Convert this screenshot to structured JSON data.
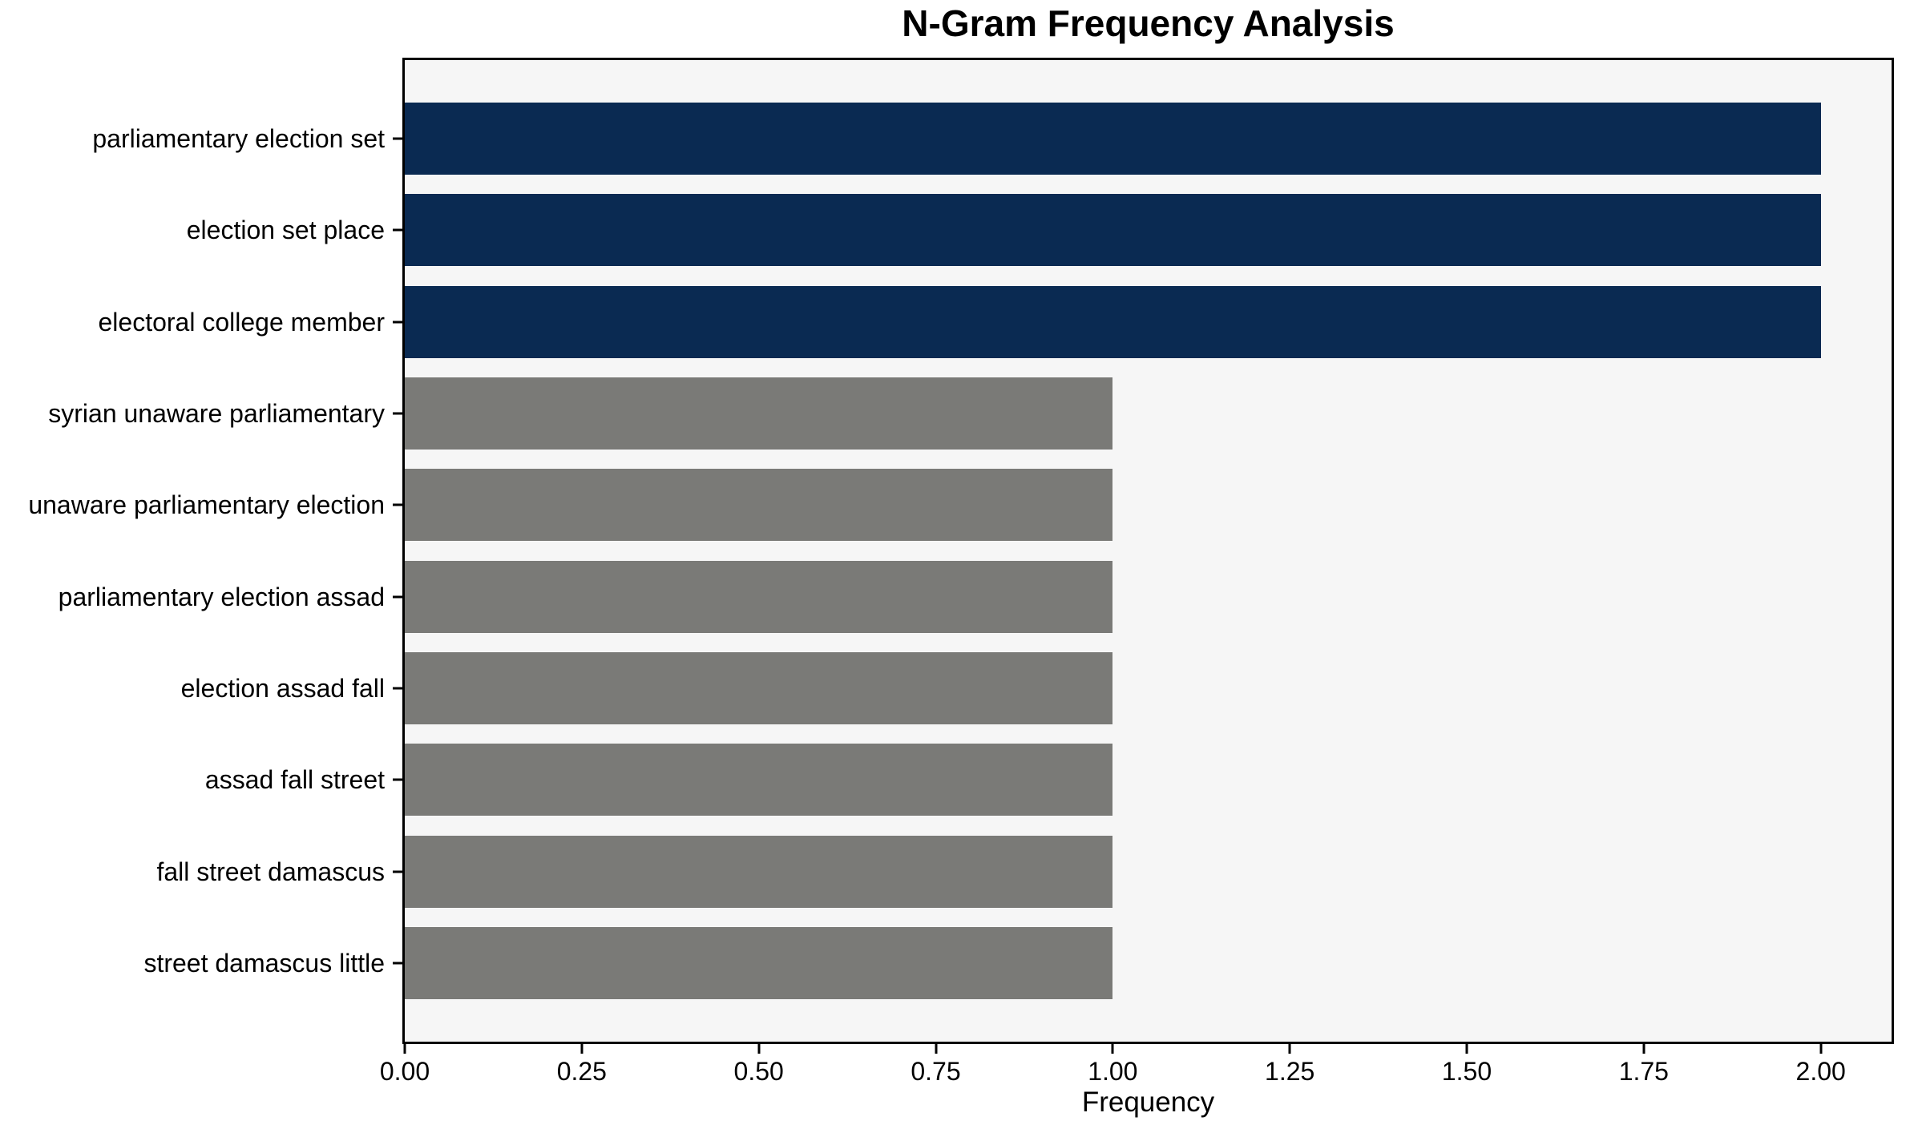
{
  "chart_data": {
    "type": "bar",
    "orientation": "horizontal",
    "title": "N-Gram Frequency Analysis",
    "xlabel": "Frequency",
    "ylabel": "",
    "categories": [
      "parliamentary election set",
      "election set place",
      "electoral college member",
      "syrian unaware parliamentary",
      "unaware parliamentary election",
      "parliamentary election assad",
      "election assad fall",
      "assad fall street",
      "fall street damascus",
      "street damascus little"
    ],
    "values": [
      2,
      2,
      2,
      1,
      1,
      1,
      1,
      1,
      1,
      1
    ],
    "bar_colors": [
      "#0a2a52",
      "#0a2a52",
      "#0a2a52",
      "#7a7a77",
      "#7a7a77",
      "#7a7a77",
      "#7a7a77",
      "#7a7a77",
      "#7a7a77",
      "#7a7a77"
    ],
    "xlim": [
      0,
      2.1
    ],
    "x_ticks": [
      0,
      0.25,
      0.5,
      0.75,
      1.0,
      1.25,
      1.5,
      1.75,
      2.0
    ],
    "x_tick_labels": [
      "0.00",
      "0.25",
      "0.50",
      "0.75",
      "1.00",
      "1.25",
      "1.50",
      "1.75",
      "2.00"
    ],
    "grid": false,
    "legend": null,
    "colors": {
      "highlight": "#0a2a52",
      "default_bar": "#7a7a77",
      "plot_background": "#f6f6f6",
      "figure_background": "#ffffff",
      "spine": "#000000",
      "text": "#000000"
    }
  }
}
